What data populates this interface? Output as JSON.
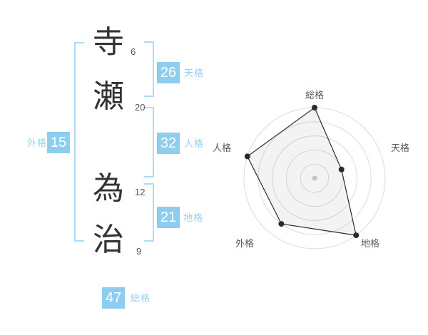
{
  "colors": {
    "badge_blue": "#8ccdf0",
    "label_blue": "#94d2f3",
    "bracket_blue": "#abdcf7",
    "char_dark": "#333333",
    "ring": "#dbdbdb",
    "axis_label": "#595959",
    "polygon_fill": "rgba(120,120,120,0.09)",
    "polygon_stroke": "#2b2b2b",
    "vertex": "#2b2b2b",
    "center_dot": "#c2c2c2"
  },
  "name_panel": {
    "chars": [
      {
        "char": "寺",
        "strokes": "6"
      },
      {
        "char": "瀬",
        "strokes": "20"
      },
      {
        "char": "為",
        "strokes": "12"
      },
      {
        "char": "治",
        "strokes": "9"
      }
    ],
    "kaku": [
      {
        "id": "tenkaku",
        "label": "天格",
        "value": "26"
      },
      {
        "id": "jinkaku",
        "label": "人格",
        "value": "32"
      },
      {
        "id": "chikaku",
        "label": "地格",
        "value": "21"
      },
      {
        "id": "gaikaku",
        "label": "外格",
        "value": "15"
      },
      {
        "id": "soukaku",
        "label": "総格",
        "value": "47"
      }
    ]
  },
  "chart_data": {
    "type": "radar",
    "axes": [
      "総格",
      "天格",
      "地格",
      "外格",
      "人格"
    ],
    "values": [
      5,
      2,
      5,
      4,
      5
    ],
    "scale": {
      "min": 0,
      "max": 5,
      "rings": 5
    },
    "axis_kaku_numbers": {
      "総格": 47,
      "天格": 26,
      "地格": 21,
      "外格": 15,
      "人格": 32
    },
    "start_angle_deg": -90,
    "direction": "clockwise",
    "legend": false,
    "grid": "concentric-circles"
  }
}
